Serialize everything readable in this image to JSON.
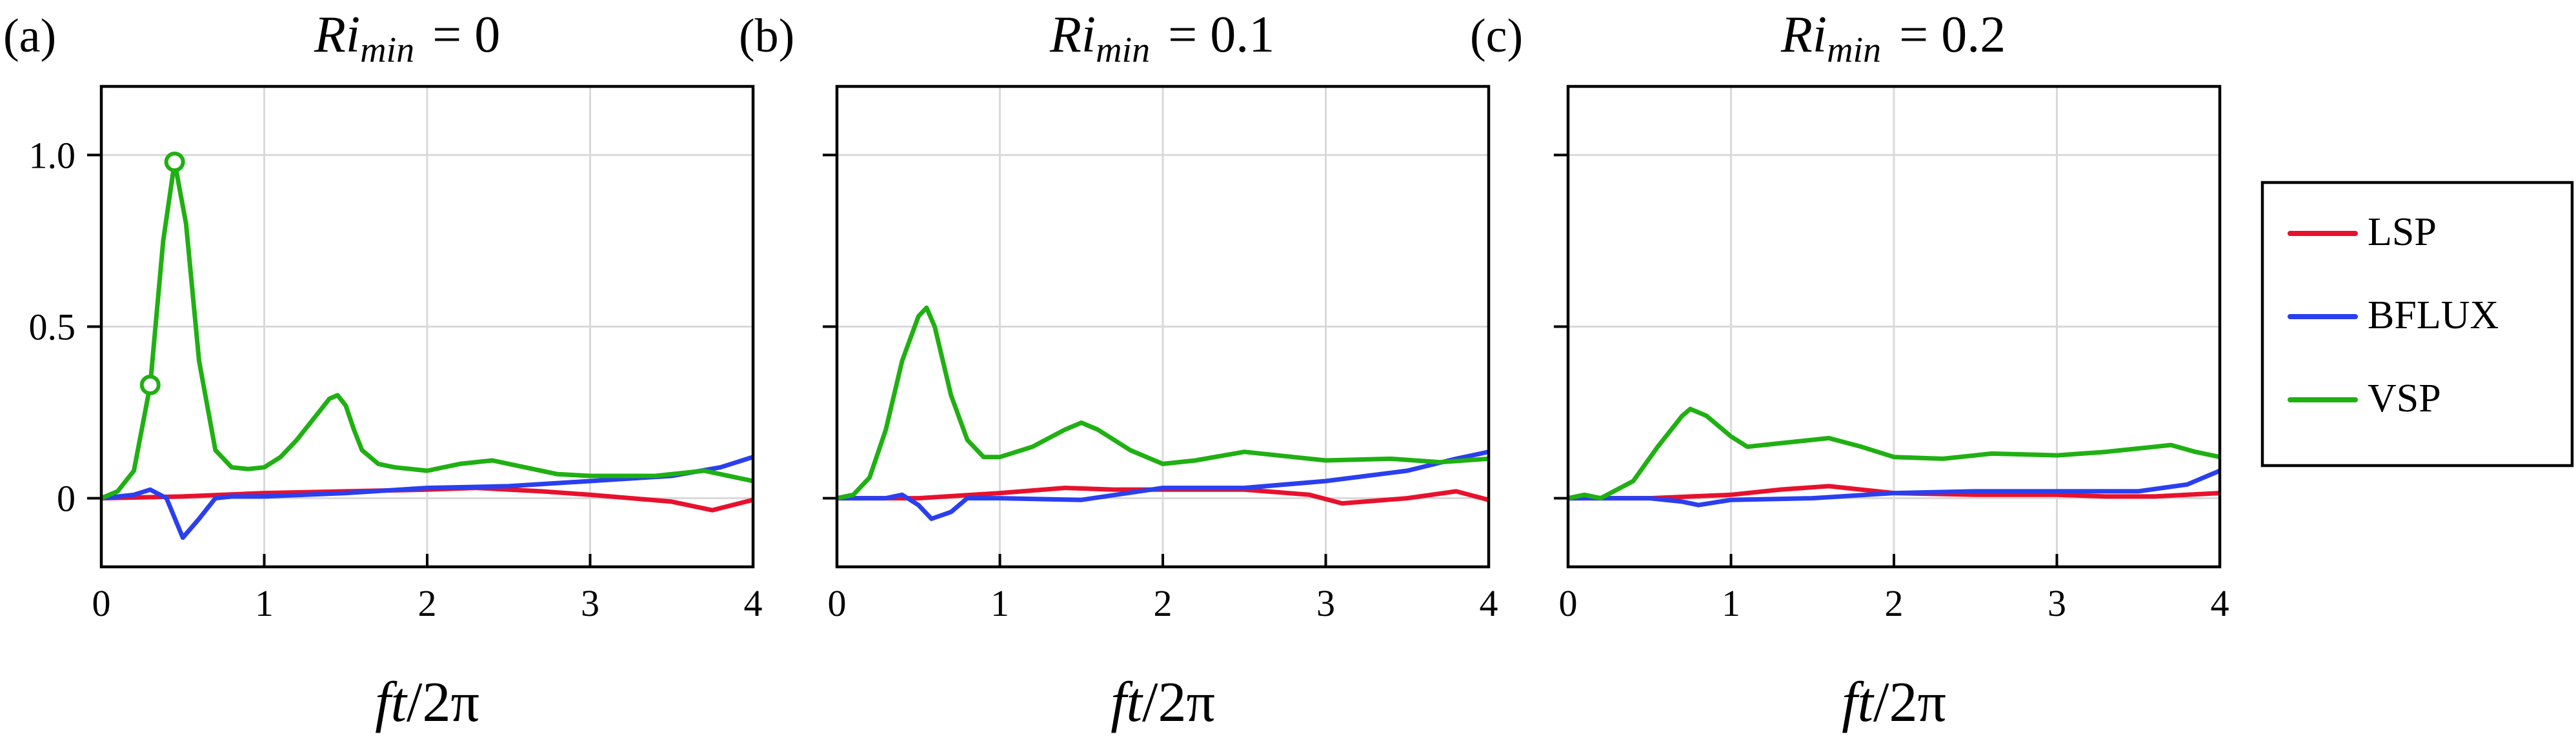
{
  "figure": {
    "legend": [
      "LSP",
      "BFLUX",
      "VSP"
    ],
    "legend_colors": [
      "#e8112d",
      "#2a3ff0",
      "#1fb012"
    ]
  },
  "chart_data": [
    {
      "type": "line",
      "panel": "(a)",
      "title": {
        "symbol": "Ri",
        "subscript": "min",
        "value": "= 0"
      },
      "xlabel": {
        "italic": "ft",
        "rest": "/2π"
      },
      "ylabel": "",
      "xlim": [
        0,
        4
      ],
      "ylim": [
        -0.2,
        1.2
      ],
      "xticks": [
        0,
        1,
        2,
        3,
        4
      ],
      "xtick_labels": [
        "0",
        "1",
        "2",
        "3",
        "4"
      ],
      "yticks": [
        0,
        0.5,
        1.0
      ],
      "ytick_labels": [
        "0",
        "0.5",
        "1.0"
      ],
      "grid": true,
      "series": [
        {
          "name": "LSP",
          "color": "#e8112d",
          "x": [
            0,
            0.5,
            1.0,
            1.5,
            2.0,
            2.3,
            2.7,
            3.0,
            3.5,
            3.75,
            4.0
          ],
          "y": [
            0.0,
            0.005,
            0.015,
            0.02,
            0.025,
            0.03,
            0.02,
            0.01,
            -0.01,
            -0.035,
            -0.005
          ]
        },
        {
          "name": "BFLUX",
          "color": "#2a3ff0",
          "x": [
            0,
            0.2,
            0.3,
            0.4,
            0.5,
            0.6,
            0.7,
            0.8,
            1.0,
            1.5,
            2.0,
            2.5,
            3.0,
            3.5,
            3.8,
            4.0
          ],
          "y": [
            0.0,
            0.01,
            0.025,
            0.0,
            -0.115,
            -0.06,
            0.0,
            0.005,
            0.005,
            0.015,
            0.03,
            0.035,
            0.05,
            0.065,
            0.09,
            0.12
          ]
        },
        {
          "name": "VSP",
          "color": "#1fb012",
          "x": [
            0,
            0.1,
            0.2,
            0.3,
            0.38,
            0.45,
            0.52,
            0.6,
            0.7,
            0.8,
            0.9,
            1.0,
            1.1,
            1.2,
            1.3,
            1.4,
            1.45,
            1.5,
            1.55,
            1.6,
            1.7,
            1.8,
            2.0,
            2.2,
            2.4,
            2.6,
            2.8,
            3.0,
            3.4,
            3.7,
            4.0
          ],
          "y": [
            0.0,
            0.02,
            0.08,
            0.33,
            0.75,
            0.98,
            0.8,
            0.4,
            0.14,
            0.09,
            0.085,
            0.09,
            0.12,
            0.17,
            0.23,
            0.29,
            0.3,
            0.27,
            0.2,
            0.14,
            0.1,
            0.09,
            0.08,
            0.1,
            0.11,
            0.09,
            0.07,
            0.065,
            0.065,
            0.08,
            0.05
          ]
        }
      ],
      "markers": [
        {
          "series": "VSP",
          "x": 0.3,
          "y": 0.33
        },
        {
          "series": "VSP",
          "x": 0.45,
          "y": 0.98
        }
      ]
    },
    {
      "type": "line",
      "panel": "(b)",
      "title": {
        "symbol": "Ri",
        "subscript": "min",
        "value": "= 0.1"
      },
      "xlabel": {
        "italic": "ft",
        "rest": "/2π"
      },
      "ylabel": "",
      "xlim": [
        0,
        4
      ],
      "ylim": [
        -0.2,
        1.2
      ],
      "xticks": [
        0,
        1,
        2,
        3,
        4
      ],
      "xtick_labels": [
        "0",
        "1",
        "2",
        "3",
        "4"
      ],
      "yticks": [
        0,
        0.5,
        1.0
      ],
      "ytick_labels": [
        "",
        "",
        ""
      ],
      "grid": true,
      "series": [
        {
          "name": "LSP",
          "color": "#e8112d",
          "x": [
            0,
            0.5,
            1.0,
            1.4,
            1.7,
            2.0,
            2.5,
            2.9,
            3.1,
            3.5,
            3.8,
            4.0
          ],
          "y": [
            0.0,
            0.0,
            0.015,
            0.03,
            0.025,
            0.025,
            0.025,
            0.01,
            -0.015,
            0.0,
            0.02,
            -0.005
          ]
        },
        {
          "name": "BFLUX",
          "color": "#2a3ff0",
          "x": [
            0,
            0.3,
            0.4,
            0.5,
            0.58,
            0.7,
            0.8,
            1.0,
            1.5,
            2.0,
            2.5,
            3.0,
            3.5,
            3.8,
            4.0
          ],
          "y": [
            0.0,
            0.0,
            0.01,
            -0.02,
            -0.06,
            -0.04,
            0.0,
            0.0,
            -0.005,
            0.03,
            0.03,
            0.05,
            0.08,
            0.115,
            0.135
          ]
        },
        {
          "name": "VSP",
          "color": "#1fb012",
          "x": [
            0,
            0.1,
            0.2,
            0.3,
            0.4,
            0.5,
            0.55,
            0.6,
            0.7,
            0.8,
            0.9,
            1.0,
            1.2,
            1.4,
            1.5,
            1.6,
            1.8,
            2.0,
            2.2,
            2.5,
            2.8,
            3.0,
            3.4,
            3.7,
            4.0
          ],
          "y": [
            0.0,
            0.01,
            0.06,
            0.2,
            0.4,
            0.53,
            0.555,
            0.5,
            0.3,
            0.17,
            0.12,
            0.12,
            0.15,
            0.2,
            0.22,
            0.2,
            0.14,
            0.1,
            0.11,
            0.135,
            0.12,
            0.11,
            0.115,
            0.105,
            0.115
          ]
        }
      ]
    },
    {
      "type": "line",
      "panel": "(c)",
      "title": {
        "symbol": "Ri",
        "subscript": "min",
        "value": "= 0.2"
      },
      "xlabel": {
        "italic": "ft",
        "rest": "/2π"
      },
      "ylabel": "",
      "xlim": [
        0,
        4
      ],
      "ylim": [
        -0.2,
        1.2
      ],
      "xticks": [
        0,
        1,
        2,
        3,
        4
      ],
      "xtick_labels": [
        "0",
        "1",
        "2",
        "3",
        "4"
      ],
      "yticks": [
        0,
        0.5,
        1.0
      ],
      "ytick_labels": [
        "",
        "",
        ""
      ],
      "grid": true,
      "series": [
        {
          "name": "LSP",
          "color": "#e8112d",
          "x": [
            0,
            0.5,
            1.0,
            1.3,
            1.6,
            2.0,
            2.5,
            3.0,
            3.3,
            3.6,
            4.0
          ],
          "y": [
            0.0,
            0.0,
            0.01,
            0.025,
            0.035,
            0.015,
            0.01,
            0.01,
            0.005,
            0.005,
            0.015
          ]
        },
        {
          "name": "BFLUX",
          "color": "#2a3ff0",
          "x": [
            0,
            0.5,
            0.7,
            0.8,
            1.0,
            1.5,
            2.0,
            2.5,
            3.0,
            3.5,
            3.8,
            4.0
          ],
          "y": [
            0.0,
            0.0,
            -0.01,
            -0.02,
            -0.005,
            0.0,
            0.015,
            0.02,
            0.02,
            0.02,
            0.04,
            0.08
          ]
        },
        {
          "name": "VSP",
          "color": "#1fb012",
          "x": [
            0,
            0.1,
            0.2,
            0.4,
            0.55,
            0.7,
            0.75,
            0.85,
            1.0,
            1.1,
            1.3,
            1.6,
            1.8,
            2.0,
            2.3,
            2.6,
            3.0,
            3.3,
            3.6,
            3.7,
            3.85,
            4.0
          ],
          "y": [
            0.0,
            0.01,
            0.0,
            0.05,
            0.15,
            0.24,
            0.26,
            0.24,
            0.18,
            0.15,
            0.16,
            0.175,
            0.15,
            0.12,
            0.115,
            0.13,
            0.125,
            0.135,
            0.15,
            0.155,
            0.135,
            0.12
          ]
        }
      ]
    }
  ]
}
